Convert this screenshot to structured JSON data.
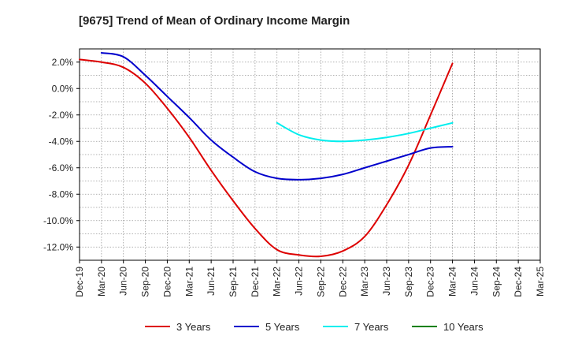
{
  "chart_data": {
    "type": "line",
    "title": "[9675]  Trend of Mean of Ordinary Income Margin",
    "xlabel": "",
    "ylabel": "",
    "x": [
      "Dec-19",
      "Mar-20",
      "Jun-20",
      "Sep-20",
      "Dec-20",
      "Mar-21",
      "Jun-21",
      "Sep-21",
      "Dec-21",
      "Mar-22",
      "Jun-22",
      "Sep-22",
      "Dec-22",
      "Mar-23",
      "Jun-23",
      "Sep-23",
      "Dec-23",
      "Mar-24",
      "Jun-24",
      "Sep-24",
      "Dec-24",
      "Mar-25"
    ],
    "ylim": [
      -13.0,
      3.0
    ],
    "yticks": [
      2.0,
      0.0,
      -2.0,
      -4.0,
      -6.0,
      -8.0,
      -10.0,
      -12.0
    ],
    "ytick_labels": [
      "2.0%",
      "0.0%",
      "-2.0%",
      "-4.0%",
      "-6.0%",
      "-8.0%",
      "-10.0%",
      "-12.0%"
    ],
    "grid": true,
    "legend_position": "bottom",
    "series": [
      {
        "name": "3 Years",
        "color": "#dd0000",
        "values": [
          2.2,
          2.0,
          1.6,
          0.4,
          -1.5,
          -3.7,
          -6.2,
          -8.5,
          -10.6,
          -12.2,
          -12.6,
          -12.7,
          -12.3,
          -11.2,
          -8.8,
          -5.8,
          -2.0,
          1.9,
          null,
          null,
          null,
          null
        ]
      },
      {
        "name": "5 Years",
        "color": "#0000cc",
        "values": [
          null,
          2.7,
          2.4,
          1.0,
          -0.6,
          -2.2,
          -3.9,
          -5.2,
          -6.3,
          -6.8,
          -6.9,
          -6.8,
          -6.5,
          -6.0,
          -5.5,
          -5.0,
          -4.5,
          -4.4,
          null,
          null,
          null,
          null
        ]
      },
      {
        "name": "7 Years",
        "color": "#00eeee",
        "values": [
          null,
          null,
          null,
          null,
          null,
          null,
          null,
          null,
          null,
          -2.6,
          -3.5,
          -3.9,
          -4.0,
          -3.9,
          -3.7,
          -3.4,
          -3.0,
          -2.6,
          null,
          null,
          null,
          null
        ]
      },
      {
        "name": "10 Years",
        "color": "#008000",
        "values": [
          null,
          null,
          null,
          null,
          null,
          null,
          null,
          null,
          null,
          null,
          null,
          null,
          null,
          null,
          null,
          null,
          null,
          null,
          null,
          null,
          null,
          null
        ]
      }
    ]
  }
}
